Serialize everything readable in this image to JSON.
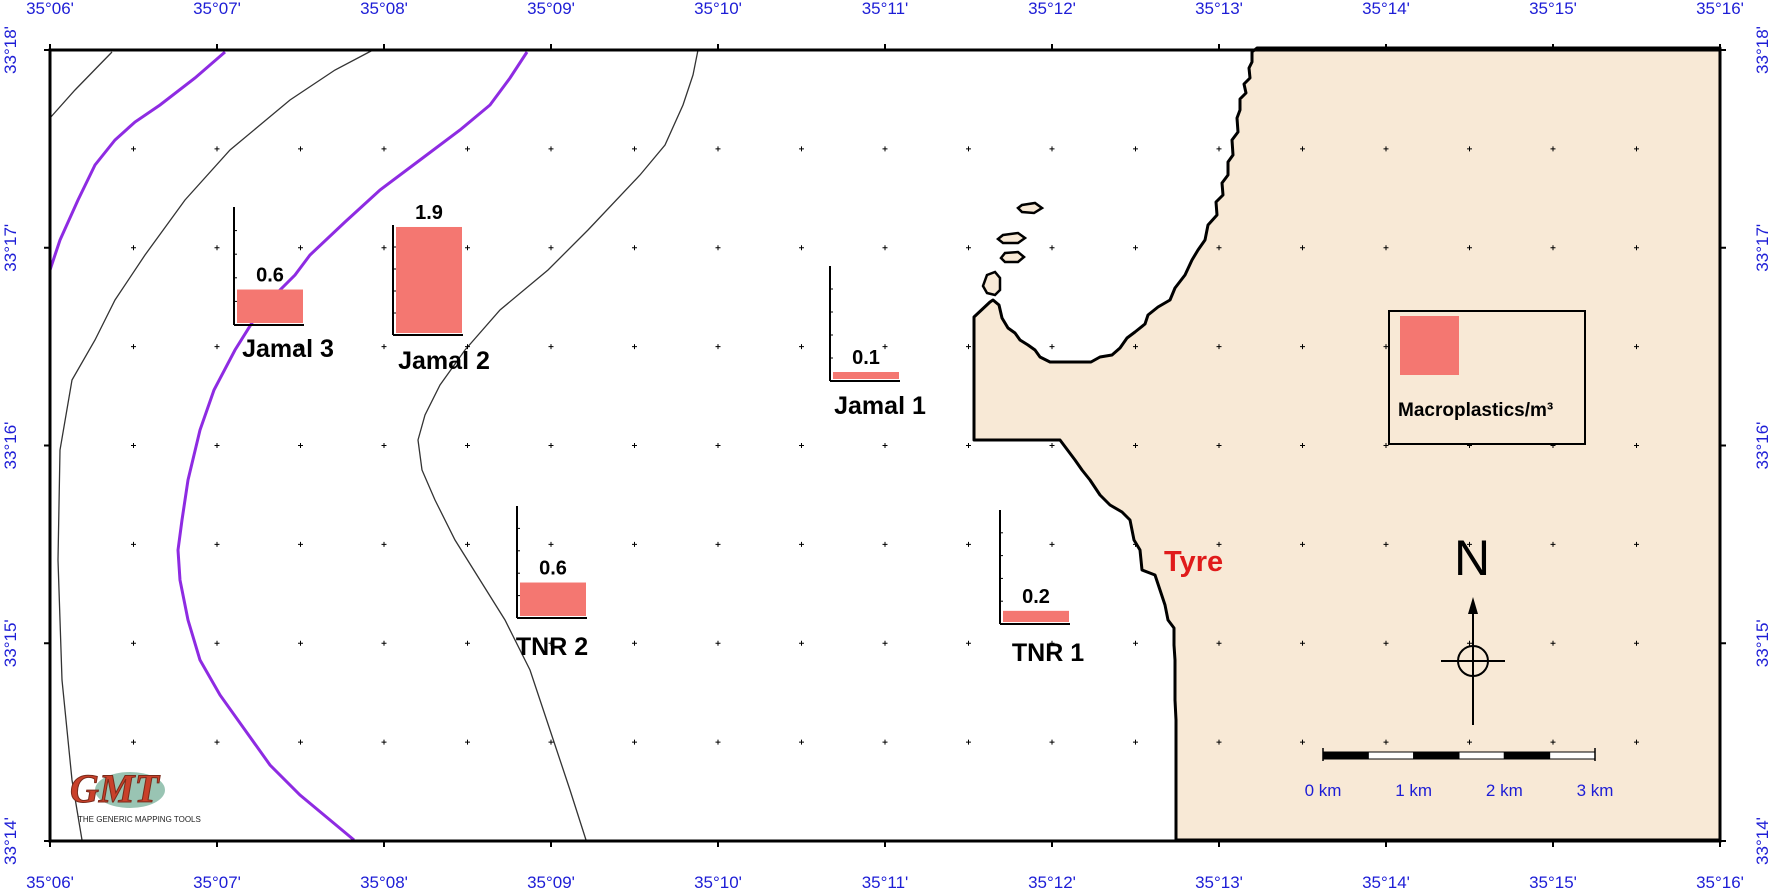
{
  "map": {
    "longitude_ticks": [
      "35°06'",
      "35°07'",
      "35°08'",
      "35°09'",
      "35°10'",
      "35°11'",
      "35°12'",
      "35°13'",
      "35°14'",
      "35°15'",
      "35°16'"
    ],
    "latitude_ticks": [
      "33°18'",
      "33°17'",
      "33°16'",
      "33°15'",
      "33°14'"
    ],
    "town": {
      "label": "Tyre",
      "color": "#e01b1b"
    },
    "sites": [
      {
        "name": "Jamal 3",
        "value": 0.6,
        "value_label": "0.6"
      },
      {
        "name": "Jamal 2",
        "value": 1.9,
        "value_label": "1.9"
      },
      {
        "name": "Jamal 1",
        "value": 0.1,
        "value_label": "0.1"
      },
      {
        "name": "TNR 2",
        "value": 0.6,
        "value_label": "0.6"
      },
      {
        "name": "TNR 1",
        "value": 0.2,
        "value_label": "0.2"
      }
    ],
    "legend": {
      "label": "Macroplastics/m³"
    },
    "north_arrow": {
      "label": "N"
    },
    "scale_bar": {
      "labels": [
        "0 km",
        "1 km",
        "2 km",
        "3 km"
      ]
    },
    "logo": {
      "name": "GMT",
      "caption": "THE GENERIC MAPPING TOOLS"
    },
    "colors": {
      "land": "#f8e9d6",
      "bar": "#f47771",
      "contour_highlight": "#8e2be2",
      "contour": "#333333",
      "frame": "#000000",
      "tick_labels": "#1d1dd6"
    }
  }
}
